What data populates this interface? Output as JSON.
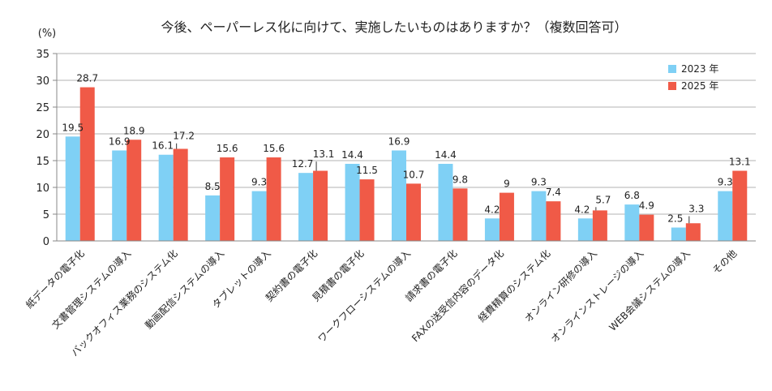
{
  "chart_data": {
    "type": "bar",
    "title": "今後、ペーパーレス化に向けて、実施したいものはありますか？（複数回答可）",
    "ylabel": "(%)",
    "xlabel": "",
    "ylim": [
      0,
      35
    ],
    "yticks": [
      "0",
      "5",
      "10",
      "15",
      "20",
      "25",
      "30",
      "35"
    ],
    "grid": true,
    "legend_position": "top-right",
    "categories": [
      "紙データの電子化",
      "文書管理システムの導入",
      "バックオフィス業務のシステム化",
      "動画配信システムの導入",
      "タブレットの導入",
      "契約書の電子化",
      "見積書の電子化",
      "ワークフローシステムの導入",
      "請求書の電子化",
      "FAXの送受信内容のデータ化",
      "経費精算のシステム化",
      "オンライン研修の導入",
      "オンラインストレージの導入",
      "WEB会議システムの導入",
      "その他"
    ],
    "series": [
      {
        "name": "2023 年",
        "color": "#7fd0f5",
        "values": [
          19.5,
          16.9,
          16.1,
          8.5,
          9.3,
          12.7,
          14.4,
          16.9,
          14.4,
          4.2,
          9.3,
          4.2,
          6.8,
          2.5,
          9.3
        ],
        "labels": [
          "19.5",
          "16.9",
          "16.1",
          "8.5",
          "9.3",
          "12.7",
          "14.4",
          "16.9",
          "14.4",
          "4.2",
          "9.3",
          "4.2",
          "6.8",
          "2.5",
          "9.3"
        ]
      },
      {
        "name": "2025 年",
        "color": "#f05a47",
        "values": [
          28.7,
          18.9,
          17.2,
          15.6,
          15.6,
          13.1,
          11.5,
          10.7,
          9.8,
          9,
          7.4,
          5.7,
          4.9,
          3.3,
          13.1
        ],
        "labels": [
          "28.7",
          "18.9",
          "17.2",
          "15.6",
          "15.6",
          "13.1",
          "11.5",
          "10.7",
          "9.8",
          "9",
          "7.4",
          "5.7",
          "4.9",
          "3.3",
          "13.1"
        ]
      }
    ]
  }
}
